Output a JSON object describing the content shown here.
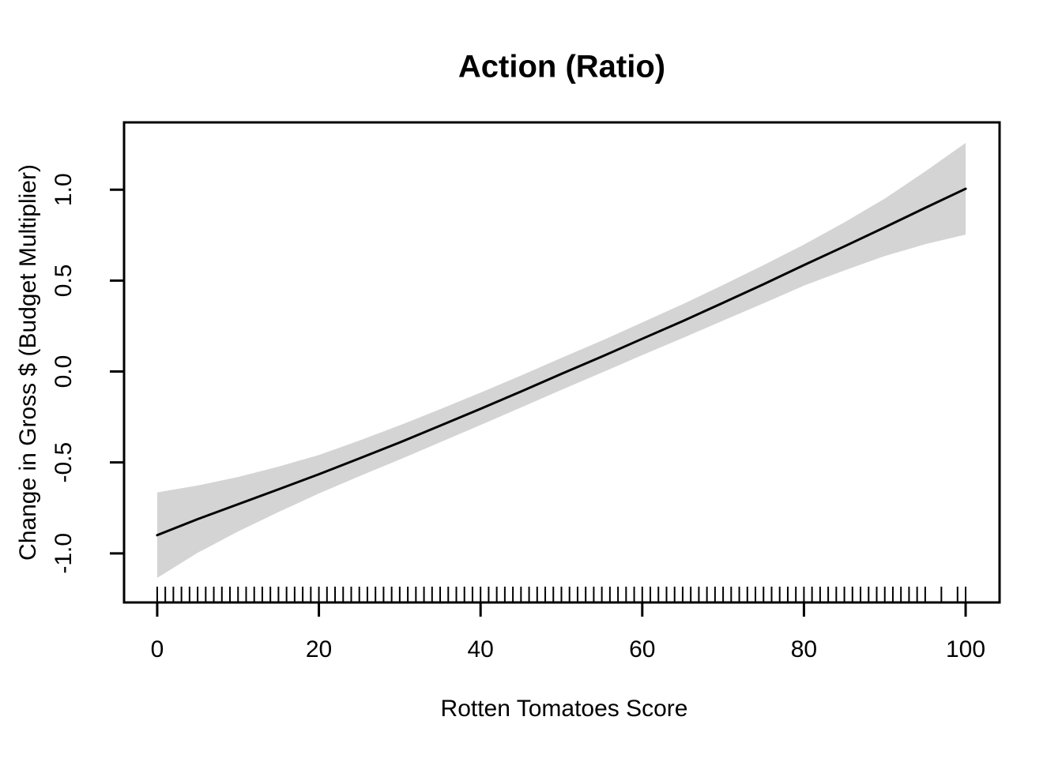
{
  "chart_data": {
    "type": "line",
    "title": "Action (Ratio)",
    "xlabel": "Rotten Tomatoes Score",
    "ylabel": "Change in Gross $ (Budget Multiplier)",
    "x_ticks": [
      0,
      20,
      40,
      60,
      80,
      100
    ],
    "x_tick_labels": [
      "0",
      "20",
      "40",
      "60",
      "80",
      "100"
    ],
    "y_ticks": [
      -1.0,
      -0.5,
      0.0,
      0.5,
      1.0
    ],
    "y_tick_labels": [
      "-1.0",
      "-0.5",
      "0.0",
      "0.5",
      "1.0"
    ],
    "xlim": [
      -4.1,
      104.2
    ],
    "ylim": [
      -1.27,
      1.37
    ],
    "grid": false,
    "legend": null,
    "band_color": "#d4d4d4",
    "line_color": "#000000",
    "axis_color": "#000000",
    "x": [
      0,
      5,
      10,
      15,
      20,
      25,
      30,
      35,
      40,
      45,
      50,
      55,
      60,
      65,
      70,
      75,
      80,
      85,
      90,
      95,
      100
    ],
    "series": [
      {
        "name": "smooth_fit",
        "values": [
          -0.9,
          -0.812,
          -0.73,
          -0.648,
          -0.565,
          -0.478,
          -0.39,
          -0.298,
          -0.205,
          -0.11,
          -0.013,
          0.082,
          0.18,
          0.277,
          0.378,
          0.48,
          0.585,
          0.688,
          0.793,
          0.9,
          1.005
        ]
      },
      {
        "name": "ci_upper",
        "values": [
          -0.665,
          -0.627,
          -0.58,
          -0.523,
          -0.459,
          -0.38,
          -0.296,
          -0.207,
          -0.116,
          -0.022,
          0.075,
          0.17,
          0.27,
          0.37,
          0.476,
          0.585,
          0.698,
          0.82,
          0.951,
          1.1,
          1.257
        ]
      },
      {
        "name": "ci_lower",
        "values": [
          -1.135,
          -0.997,
          -0.88,
          -0.773,
          -0.671,
          -0.576,
          -0.484,
          -0.389,
          -0.294,
          -0.198,
          -0.101,
          -0.006,
          0.09,
          0.184,
          0.28,
          0.375,
          0.472,
          0.556,
          0.635,
          0.7,
          0.753
        ]
      }
    ],
    "rug_x": [
      0,
      1,
      2,
      3,
      4,
      5,
      6,
      7,
      8,
      9,
      10,
      11,
      12,
      13,
      14,
      15,
      16,
      17,
      18,
      19,
      20,
      21,
      22,
      23,
      24,
      25,
      26,
      27,
      28,
      29,
      30,
      31,
      32,
      33,
      34,
      35,
      36,
      37,
      38,
      39,
      40,
      41,
      42,
      43,
      44,
      45,
      46,
      47,
      48,
      49,
      50,
      51,
      52,
      53,
      54,
      55,
      56,
      57,
      58,
      59,
      60,
      61,
      62,
      63,
      64,
      65,
      66,
      67,
      68,
      69,
      70,
      71,
      72,
      73,
      74,
      75,
      76,
      77,
      78,
      79,
      80,
      81,
      82,
      83,
      84,
      85,
      86,
      87,
      88,
      89,
      90,
      91,
      92,
      93,
      94,
      95,
      97,
      99,
      100
    ]
  }
}
